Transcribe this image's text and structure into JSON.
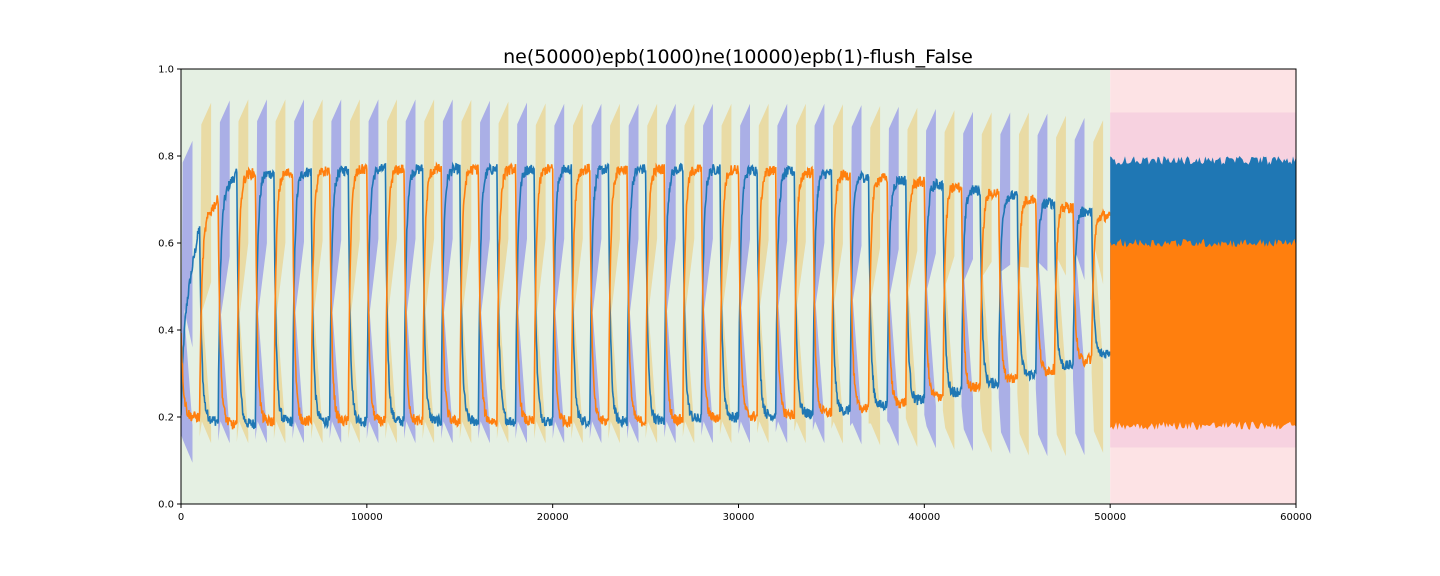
{
  "chart_data": {
    "type": "line",
    "title": "ne(50000)epb(1000)ne(10000)epb(1)-flush_False",
    "xlabel": "",
    "ylabel": "",
    "xlim": [
      0,
      60000
    ],
    "ylim": [
      0.0,
      1.0
    ],
    "grid": false,
    "legend": "none",
    "x_ticks": [
      {
        "value": 0,
        "label": "0"
      },
      {
        "value": 10000,
        "label": "10000"
      },
      {
        "value": 20000,
        "label": "20000"
      },
      {
        "value": 30000,
        "label": "30000"
      },
      {
        "value": 40000,
        "label": "40000"
      },
      {
        "value": 50000,
        "label": "50000"
      },
      {
        "value": 60000,
        "label": "60000"
      }
    ],
    "y_ticks": [
      {
        "value": 0.0,
        "label": "0.0"
      },
      {
        "value": 0.2,
        "label": "0.2"
      },
      {
        "value": 0.4,
        "label": "0.4"
      },
      {
        "value": 0.6,
        "label": "0.6"
      },
      {
        "value": 0.8,
        "label": "0.8"
      },
      {
        "value": 1.0,
        "label": "1.0"
      }
    ],
    "background_regions": [
      {
        "x_start": 0,
        "x_end": 50000,
        "color": "#e5f0e3"
      },
      {
        "x_start": 50000,
        "x_end": 60000,
        "color": "#fde3e5"
      }
    ],
    "colors": {
      "blue_line": "#1f77b4",
      "orange_line": "#ff7f0e",
      "blue_band": "#a6abe6",
      "orange_band": "#e9d9a1",
      "pink_band": "#f4c7dc"
    },
    "phase_1": {
      "x_start": 0,
      "x_end": 50000,
      "cycle_length": 1000,
      "high_level": [
        0.4,
        0.64,
        0.76,
        0.76,
        0.77,
        0.77,
        0.77,
        0.77,
        0.77,
        0.76,
        0.74,
        0.72,
        0.7,
        0.68,
        0.66
      ],
      "high_level_x": [
        0,
        1000,
        3000,
        5000,
        10000,
        15000,
        20000,
        25000,
        30000,
        35000,
        40000,
        43000,
        46000,
        48000,
        50000
      ],
      "low_level": [
        0.2,
        0.2,
        0.18,
        0.19,
        0.19,
        0.19,
        0.19,
        0.19,
        0.2,
        0.21,
        0.24,
        0.27,
        0.3,
        0.32,
        0.35
      ],
      "low_level_x": [
        0,
        1000,
        3000,
        5000,
        10000,
        15000,
        20000,
        25000,
        30000,
        35000,
        40000,
        43000,
        46000,
        48000,
        50000
      ],
      "band_upper": [
        0.75,
        0.92,
        0.93,
        0.93,
        0.93,
        0.93,
        0.92,
        0.92,
        0.92,
        0.92,
        0.91,
        0.9,
        0.9,
        0.89,
        0.88
      ],
      "band_lower": [
        0.05,
        0.14,
        0.14,
        0.14,
        0.14,
        0.14,
        0.14,
        0.14,
        0.14,
        0.14,
        0.13,
        0.12,
        0.11,
        0.11,
        0.12
      ]
    },
    "phase_2": {
      "x_start": 50000,
      "x_end": 60000,
      "blue_upper": 0.79,
      "blue_lower": 0.47,
      "orange_upper": 0.6,
      "orange_lower": 0.18,
      "band_upper": 0.9,
      "band_lower": 0.13
    }
  }
}
